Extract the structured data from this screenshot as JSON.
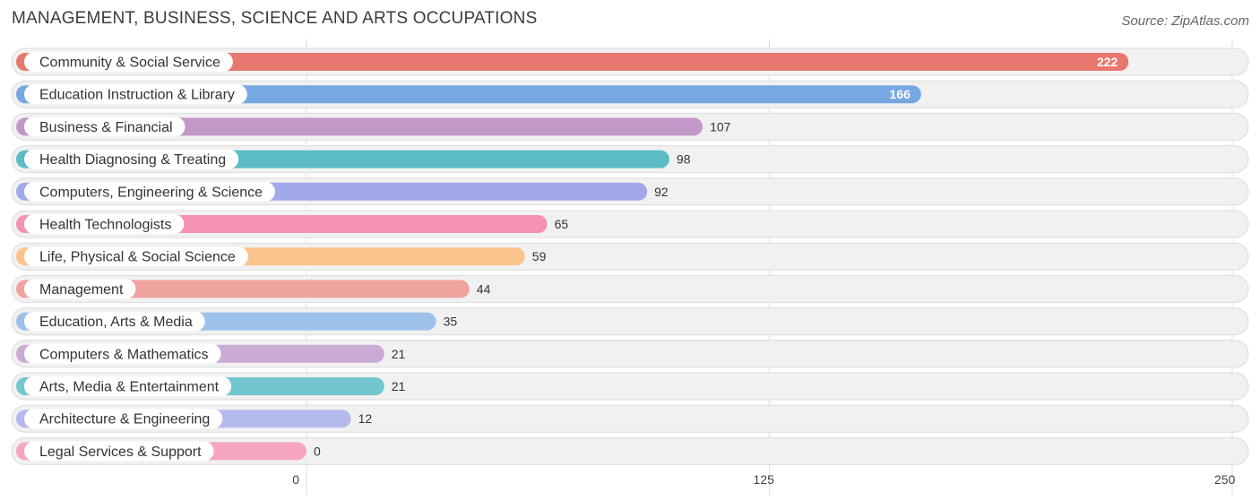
{
  "title": "MANAGEMENT, BUSINESS, SCIENCE AND ARTS OCCUPATIONS",
  "source": "Source: ZipAtlas.com",
  "chart_data": {
    "type": "bar",
    "orientation": "horizontal",
    "title": "MANAGEMENT, BUSINESS, SCIENCE AND ARTS OCCUPATIONS",
    "categories": [
      "Community & Social Service",
      "Education Instruction & Library",
      "Business & Financial",
      "Health Diagnosing & Treating",
      "Computers, Engineering & Science",
      "Health Technologists",
      "Life, Physical & Social Science",
      "Management",
      "Education, Arts & Media",
      "Computers & Mathematics",
      "Arts, Media & Entertainment",
      "Architecture & Engineering",
      "Legal Services & Support"
    ],
    "values": [
      222,
      166,
      107,
      98,
      92,
      65,
      59,
      44,
      35,
      21,
      21,
      12,
      0
    ],
    "colors": [
      "#e8786f",
      "#76a8e2",
      "#c398c9",
      "#5bbcc4",
      "#a2a9e8",
      "#f591b4",
      "#fbc48e",
      "#efa39f",
      "#9ec1ec",
      "#c9abd3",
      "#73c6cf",
      "#b4b9ee",
      "#f7a6c1"
    ],
    "xlim": [
      0,
      250
    ],
    "xticks": [
      0,
      125,
      250
    ],
    "grid": true
  }
}
